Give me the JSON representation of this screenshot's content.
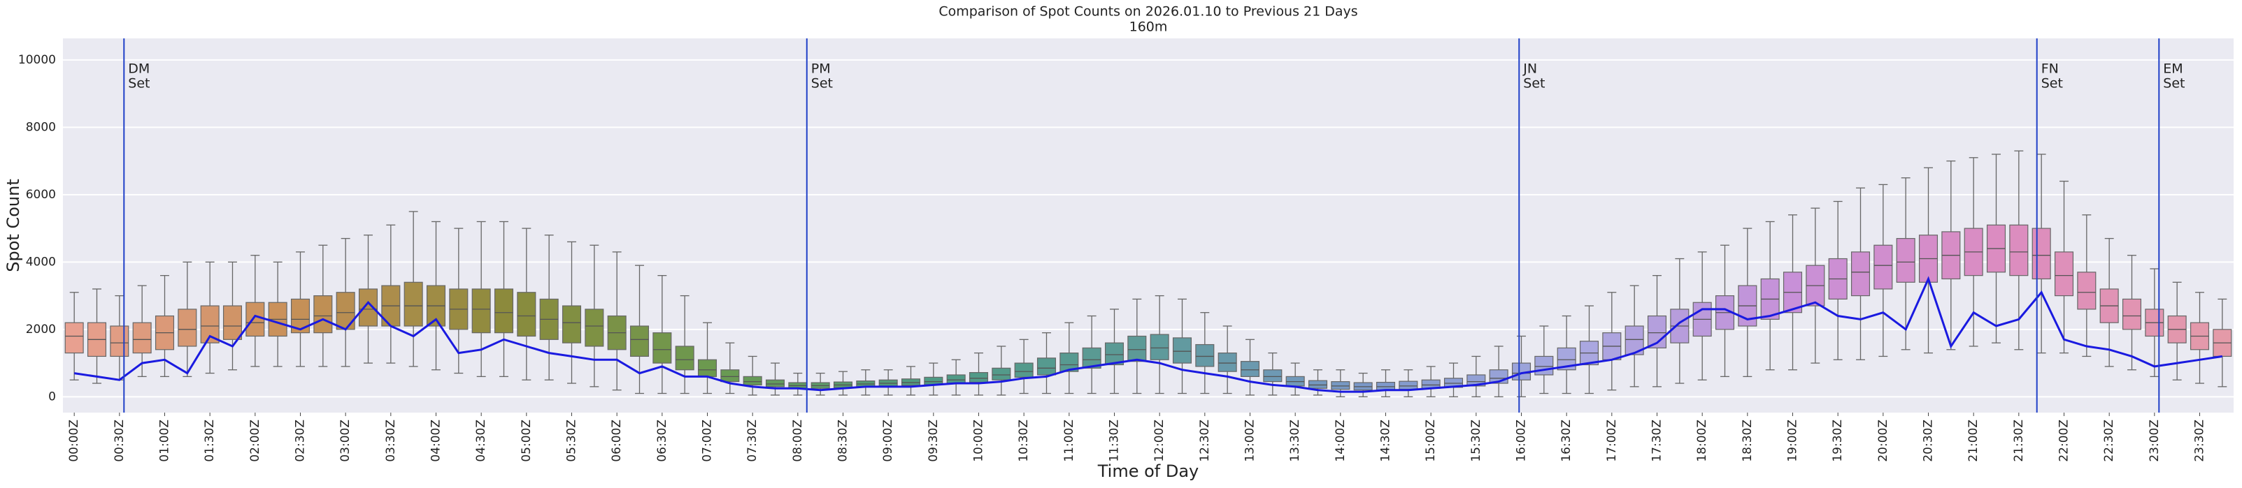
{
  "chart_data": {
    "type": "box",
    "title": "Comparison of Spot Counts on 2026.01.10 to Previous 21 Days",
    "subtitle": "160m",
    "x_label": "Time of Day",
    "y_label": "Spot Count",
    "categories": [
      "00:00Z",
      null,
      "00:30Z",
      null,
      "01:00Z",
      null,
      "01:30Z",
      null,
      "02:00Z",
      null,
      "02:30Z",
      null,
      "03:00Z",
      null,
      "03:30Z",
      null,
      "04:00Z",
      null,
      "04:30Z",
      null,
      "05:00Z",
      null,
      "05:30Z",
      null,
      "06:00Z",
      null,
      "06:30Z",
      null,
      "07:00Z",
      null,
      "07:30Z",
      null,
      "08:00Z",
      null,
      "08:30Z",
      null,
      "09:00Z",
      null,
      "09:30Z",
      null,
      "10:00Z",
      null,
      "10:30Z",
      null,
      "11:00Z",
      null,
      "11:30Z",
      null,
      "12:00Z",
      null,
      "12:30Z",
      null,
      "13:00Z",
      null,
      "13:30Z",
      null,
      "14:00Z",
      null,
      "14:30Z",
      null,
      "15:00Z",
      null,
      "15:30Z",
      null,
      "16:00Z",
      null,
      "16:30Z",
      null,
      "17:00Z",
      null,
      "17:30Z",
      null,
      "18:00Z",
      null,
      "18:30Z",
      null,
      "19:00Z",
      null,
      "19:30Z",
      null,
      "20:00Z",
      null,
      "20:30Z",
      null,
      "21:00Z",
      null,
      "21:30Z",
      null,
      "22:00Z",
      null,
      "22:30Z",
      null,
      "23:00Z",
      null,
      "23:30Z",
      null
    ],
    "whisker_low": [
      500,
      400,
      500,
      600,
      600,
      600,
      700,
      800,
      900,
      900,
      900,
      900,
      900,
      1000,
      1000,
      900,
      800,
      700,
      600,
      600,
      500,
      500,
      400,
      300,
      200,
      100,
      100,
      100,
      100,
      100,
      50,
      50,
      50,
      50,
      50,
      50,
      50,
      50,
      50,
      50,
      50,
      50,
      100,
      100,
      100,
      100,
      100,
      100,
      100,
      100,
      100,
      100,
      50,
      50,
      50,
      50,
      0,
      0,
      0,
      0,
      0,
      0,
      0,
      0,
      0,
      100,
      100,
      100,
      200,
      300,
      300,
      400,
      500,
      600,
      600,
      800,
      800,
      1000,
      1100,
      1100,
      1200,
      1400,
      1300,
      1400,
      1500,
      1600,
      1400,
      1300,
      1300,
      1200,
      900,
      800,
      600,
      500,
      400,
      300
    ],
    "q1": [
      1300,
      1200,
      1200,
      1300,
      1400,
      1500,
      1600,
      1700,
      1800,
      1800,
      1900,
      1900,
      2000,
      2100,
      2100,
      2100,
      2100,
      2000,
      1900,
      1900,
      1800,
      1700,
      1600,
      1500,
      1400,
      1200,
      1000,
      800,
      600,
      450,
      350,
      300,
      250,
      250,
      270,
      300,
      320,
      340,
      360,
      400,
      430,
      500,
      580,
      650,
      750,
      850,
      950,
      1050,
      1100,
      1000,
      900,
      750,
      600,
      450,
      320,
      250,
      220,
      200,
      200,
      220,
      250,
      280,
      320,
      400,
      500,
      650,
      800,
      950,
      1100,
      1250,
      1450,
      1600,
      1800,
      2000,
      2100,
      2300,
      2500,
      2700,
      2900,
      3000,
      3200,
      3400,
      3400,
      3500,
      3600,
      3700,
      3600,
      3500,
      3000,
      2600,
      2200,
      2000,
      1800,
      1600,
      1400,
      1200
    ],
    "median": [
      1800,
      1700,
      1600,
      1700,
      1900,
      2000,
      2100,
      2100,
      2200,
      2300,
      2300,
      2400,
      2500,
      2600,
      2700,
      2700,
      2700,
      2600,
      2600,
      2500,
      2400,
      2300,
      2200,
      2100,
      1900,
      1700,
      1400,
      1100,
      800,
      600,
      450,
      380,
      330,
      330,
      350,
      380,
      400,
      420,
      450,
      500,
      550,
      650,
      750,
      850,
      950,
      1100,
      1250,
      1400,
      1450,
      1350,
      1200,
      1000,
      800,
      600,
      450,
      350,
      320,
      300,
      300,
      320,
      350,
      400,
      450,
      550,
      700,
      900,
      1100,
      1300,
      1500,
      1700,
      1900,
      2100,
      2300,
      2500,
      2700,
      2900,
      3100,
      3300,
      3500,
      3700,
      3900,
      4000,
      4100,
      4200,
      4300,
      4400,
      4300,
      4200,
      3600,
      3100,
      2700,
      2400,
      2200,
      2000,
      1800,
      1600
    ],
    "q3": [
      2200,
      2200,
      2100,
      2200,
      2400,
      2600,
      2700,
      2700,
      2800,
      2800,
      2900,
      3000,
      3100,
      3200,
      3300,
      3400,
      3300,
      3200,
      3200,
      3200,
      3100,
      2900,
      2700,
      2600,
      2400,
      2100,
      1900,
      1500,
      1100,
      800,
      600,
      500,
      420,
      420,
      440,
      470,
      500,
      530,
      580,
      650,
      720,
      850,
      1000,
      1150,
      1300,
      1450,
      1600,
      1800,
      1850,
      1750,
      1550,
      1300,
      1050,
      800,
      600,
      480,
      450,
      420,
      430,
      460,
      500,
      550,
      650,
      800,
      1000,
      1200,
      1450,
      1650,
      1900,
      2100,
      2400,
      2600,
      2800,
      3000,
      3300,
      3500,
      3700,
      3900,
      4100,
      4300,
      4500,
      4700,
      4800,
      4900,
      5000,
      5100,
      5100,
      5000,
      4300,
      3700,
      3200,
      2900,
      2600,
      2400,
      2200,
      2000
    ],
    "whisker_high": [
      3100,
      3200,
      3000,
      3300,
      3600,
      4000,
      4000,
      4000,
      4200,
      4000,
      4300,
      4500,
      4700,
      4800,
      5100,
      5500,
      5200,
      5000,
      5200,
      5200,
      5000,
      4800,
      4600,
      4500,
      4300,
      3900,
      3600,
      3000,
      2200,
      1600,
      1200,
      1000,
      700,
      700,
      750,
      800,
      800,
      900,
      1000,
      1100,
      1300,
      1500,
      1700,
      1900,
      2200,
      2400,
      2600,
      2900,
      3000,
      2900,
      2500,
      2100,
      1700,
      1300,
      1000,
      800,
      800,
      700,
      800,
      800,
      900,
      1000,
      1200,
      1500,
      1800,
      2100,
      2400,
      2700,
      3100,
      3300,
      3600,
      4100,
      4300,
      4500,
      5000,
      5200,
      5400,
      5600,
      5800,
      6200,
      6300,
      6500,
      6800,
      7000,
      7100,
      7200,
      7300,
      7200,
      6400,
      5400,
      4700,
      4200,
      3800,
      3400,
      3100,
      2900
    ],
    "box_palette": [
      "#e8a090",
      "#c89058",
      "#8c8a3c",
      "#6a9a50",
      "#4e9a84",
      "#5e9a98",
      "#7a98c8",
      "#a8a8e0",
      "#c890d8",
      "#dc8cc0",
      "#e49aa8"
    ],
    "line": {
      "color": "#1a1ae0",
      "values": [
        700,
        600,
        500,
        1000,
        1100,
        700,
        1800,
        1500,
        2400,
        2200,
        2000,
        2300,
        2000,
        2800,
        2100,
        1800,
        2300,
        1300,
        1400,
        1700,
        1500,
        1300,
        1200,
        1100,
        1100,
        700,
        900,
        600,
        600,
        400,
        300,
        250,
        250,
        200,
        250,
        300,
        300,
        300,
        350,
        400,
        400,
        450,
        550,
        600,
        800,
        900,
        1000,
        1100,
        1000,
        800,
        700,
        600,
        450,
        350,
        300,
        200,
        150,
        150,
        200,
        200,
        250,
        300,
        350,
        450,
        700,
        800,
        900,
        1000,
        1100,
        1300,
        1600,
        2200,
        2600,
        2600,
        2300,
        2400,
        2600,
        2800,
        2400,
        2300,
        2500,
        2000,
        3500,
        1500,
        2500,
        2100,
        2300,
        3100,
        1700,
        1500,
        1400,
        1200,
        900,
        1000,
        1100,
        1200
      ]
    },
    "annotations": [
      {
        "x": 2.2,
        "text": [
          "DM",
          "Set"
        ]
      },
      {
        "x": 32.4,
        "text": [
          "PM",
          "Set"
        ]
      },
      {
        "x": 63.9,
        "text": [
          "JN",
          "Set"
        ]
      },
      {
        "x": 86.8,
        "text": [
          "FN",
          "Set"
        ]
      },
      {
        "x": 92.2,
        "text": [
          "EM",
          "Set"
        ]
      }
    ],
    "annotation_color": "#2040c8",
    "ylim": [
      -470,
      10640
    ],
    "yticks": [
      0,
      2000,
      4000,
      6000,
      8000,
      10000
    ],
    "grid": true
  }
}
